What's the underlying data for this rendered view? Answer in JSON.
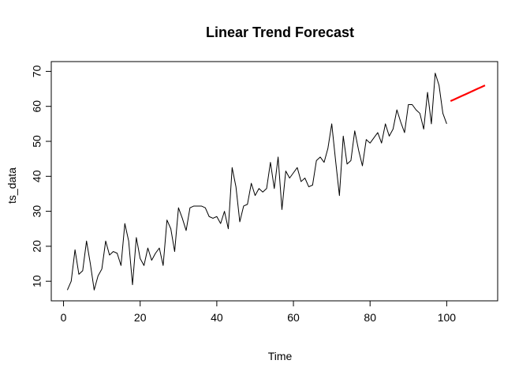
{
  "chart_data": {
    "type": "line",
    "title": "Linear Trend Forecast",
    "xlabel": "Time",
    "ylabel": "ts_data",
    "xlim": [
      -3.2,
      113.3
    ],
    "ylim": [
      4.4,
      72.8
    ],
    "x_ticks": [
      0,
      20,
      40,
      60,
      80,
      100
    ],
    "y_ticks": [
      10,
      20,
      30,
      40,
      50,
      60,
      70
    ],
    "grid": false,
    "legend": "none",
    "series": [
      {
        "color": "#000000",
        "x_start": 1,
        "values": [
          7.5,
          10.0,
          19.0,
          12.0,
          13.0,
          21.5,
          15.0,
          7.5,
          11.5,
          13.5,
          21.5,
          17.5,
          18.5,
          18.0,
          14.5,
          26.5,
          21.5,
          9.0,
          22.5,
          16.5,
          14.5,
          19.5,
          16.0,
          18.0,
          19.5,
          14.5,
          27.5,
          25.0,
          18.5,
          31.0,
          28.0,
          24.5,
          31.0,
          31.5,
          31.5,
          31.5,
          31.0,
          28.5,
          28.0,
          28.5,
          26.5,
          30.0,
          25.0,
          42.5,
          37.0,
          27.0,
          31.5,
          32.0,
          38.0,
          34.5,
          36.5,
          35.5,
          36.5,
          44.0,
          36.5,
          45.5,
          30.5,
          41.5,
          39.5,
          41.0,
          42.5,
          38.5,
          39.5,
          37.0,
          37.5,
          44.5,
          45.5,
          44.0,
          48.0,
          55.0,
          44.5,
          34.5,
          51.5,
          43.5,
          44.5,
          53.0,
          47.5,
          43.0,
          50.5,
          49.5,
          51.0,
          52.5,
          49.5,
          55.0,
          51.5,
          53.5,
          59.0,
          55.5,
          52.5,
          60.5,
          60.5,
          59.0,
          58.0,
          53.5,
          64.0,
          55.0,
          69.5,
          66.0,
          58.0,
          55.0
        ]
      },
      {
        "color": "#ff0000",
        "x_start": 101,
        "values": [
          61.5,
          62.0,
          62.5,
          63.0,
          63.5,
          64.0,
          64.5,
          65.0,
          65.5,
          66.0
        ]
      }
    ]
  }
}
